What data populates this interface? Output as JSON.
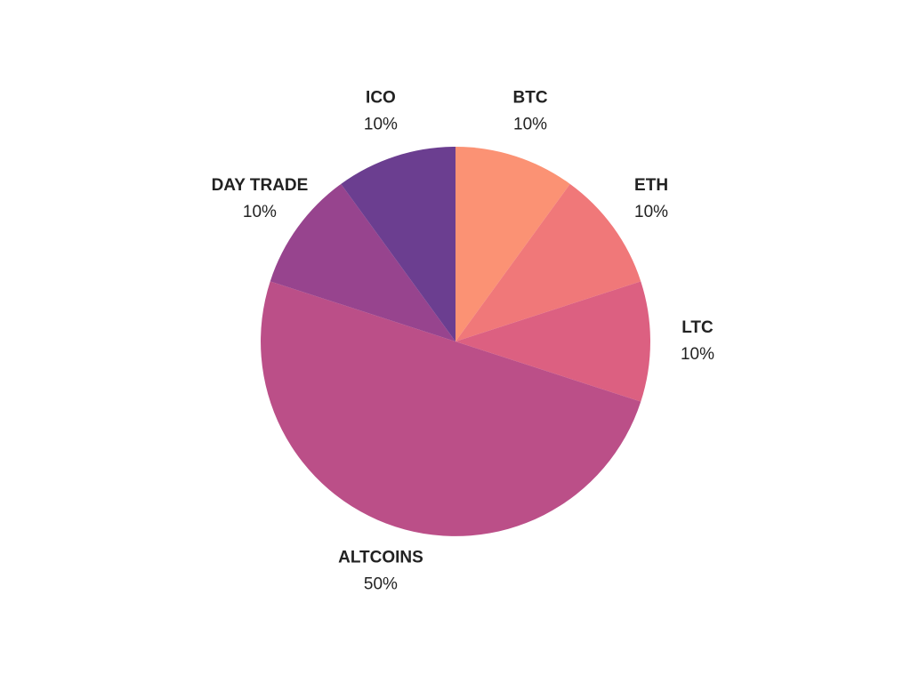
{
  "chart_data": {
    "type": "pie",
    "categories": [
      "BTC",
      "ETH",
      "LTC",
      "ALTCOINS",
      "DAY TRADE",
      "ICO"
    ],
    "values": [
      10,
      10,
      10,
      50,
      10,
      10
    ],
    "value_labels": [
      "10%",
      "10%",
      "10%",
      "50%",
      "10%",
      "10%"
    ],
    "colors": [
      "#fb9274",
      "#f07879",
      "#dc6081",
      "#bb4f88",
      "#97448e",
      "#6b3e90"
    ]
  }
}
